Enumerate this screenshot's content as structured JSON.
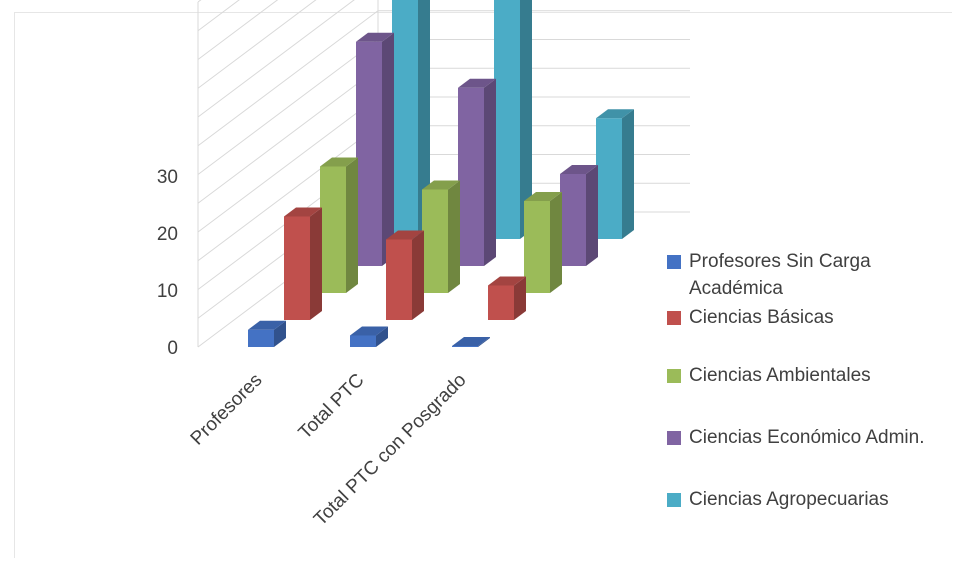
{
  "chart_data": {
    "type": "bar",
    "subtype": "3d-column",
    "categories": [
      "Profesores",
      "Total PTC",
      "Total PTC con Posgrado"
    ],
    "series": [
      {
        "name": "Profesores Sin Carga Académica",
        "color": "#4472C4",
        "values": [
          3,
          2,
          0
        ]
      },
      {
        "name": "Ciencias Básicas",
        "color": "#C0504D",
        "values": [
          18,
          14,
          6
        ]
      },
      {
        "name": "Ciencias Ambientales",
        "color": "#9BBB59",
        "values": [
          22,
          18,
          16
        ]
      },
      {
        "name": "Ciencias Económico Admin.",
        "color": "#8064A2",
        "values": [
          39,
          31,
          16
        ]
      },
      {
        "name": "Ciencias Agropecuarias",
        "color": "#4BACC6",
        "values": [
          54,
          52,
          21
        ]
      }
    ],
    "y_ticks": [
      "0",
      "10",
      "20",
      "30"
    ],
    "ylim": [
      0,
      60
    ],
    "legend_position": "right",
    "grid": true
  }
}
